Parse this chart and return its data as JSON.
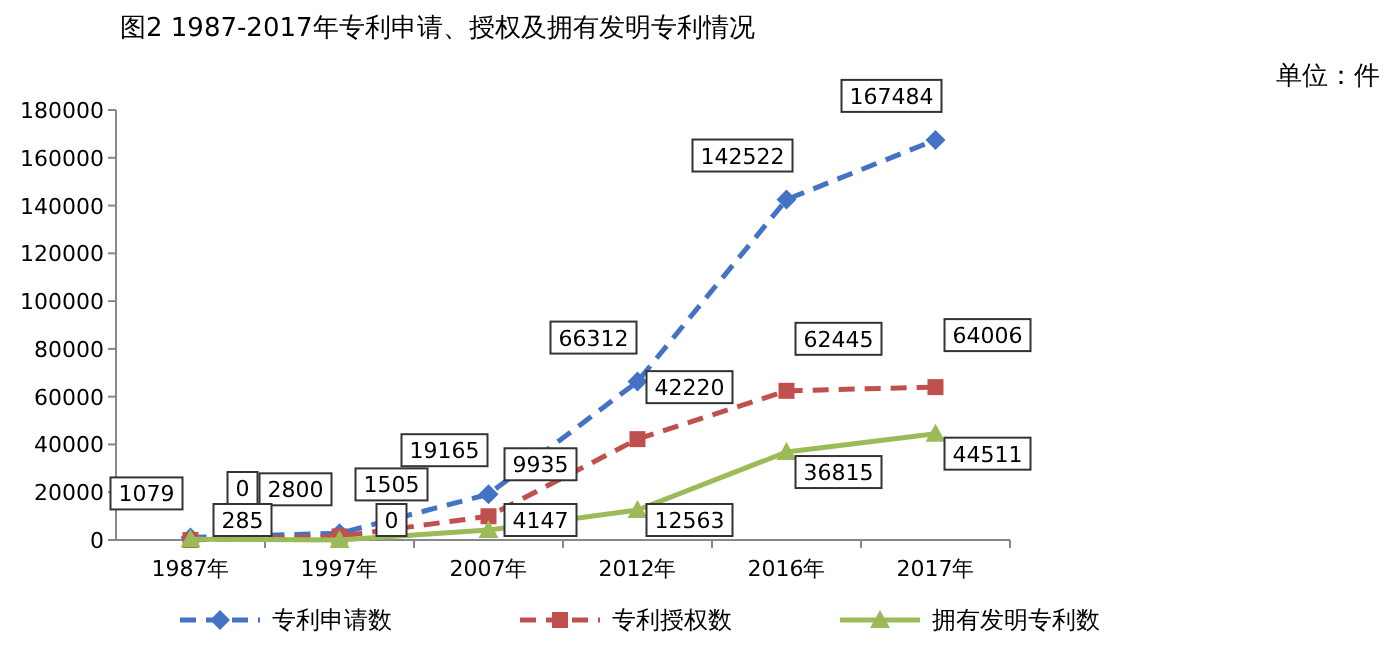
{
  "chart_data": {
    "type": "line",
    "title": "图2  1987-2017年专利申请、授权及拥有发明专利情况",
    "annotations": [
      "单位：件"
    ],
    "categories": [
      "1987年",
      "1997年",
      "2007年",
      "2012年",
      "2016年",
      "2017年"
    ],
    "series": [
      {
        "name": "专利申请数",
        "color": "#4472c4",
        "marker": "diamond",
        "line_style": "dashed",
        "values": [
          1079,
          2800,
          19165,
          66312,
          142522,
          167484
        ]
      },
      {
        "name": "专利授权数",
        "color": "#c0504d",
        "marker": "square",
        "line_style": "dashed",
        "values": [
          0,
          1505,
          9935,
          42220,
          62445,
          64006
        ]
      },
      {
        "name": "拥有发明专利数",
        "color": "#9bbb59",
        "marker": "triangle",
        "line_style": "solid",
        "values": [
          285,
          0,
          4147,
          12563,
          36815,
          44511
        ]
      }
    ],
    "ylim": [
      0,
      180000
    ],
    "yticks": [
      0,
      20000,
      40000,
      60000,
      80000,
      100000,
      120000,
      140000,
      160000,
      180000
    ],
    "grid": false,
    "legend": "bottom",
    "data_labels": true
  }
}
